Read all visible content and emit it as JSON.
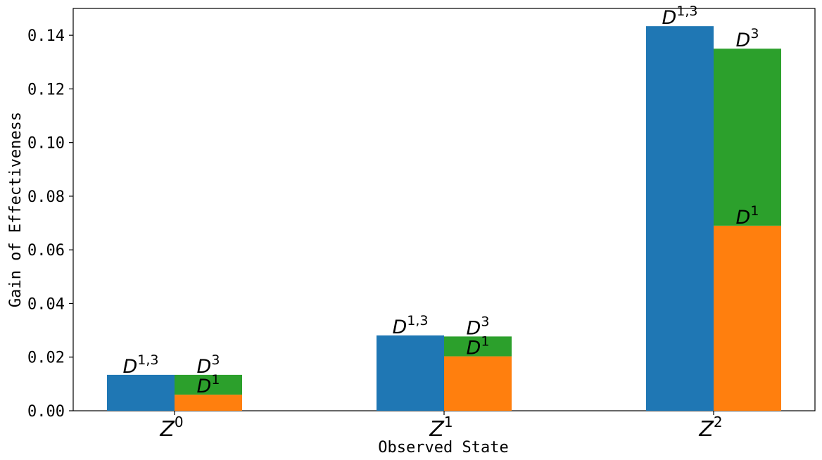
{
  "chart_data": {
    "type": "bar",
    "xlabel": "Observed State",
    "ylabel": "Gain of Effectiveness",
    "ylim": [
      0,
      0.15
    ],
    "yticks": [
      "0.00",
      "0.02",
      "0.04",
      "0.06",
      "0.08",
      "0.10",
      "0.12",
      "0.14"
    ],
    "ytick_values": [
      0,
      0.02,
      0.04,
      0.06,
      0.08,
      0.1,
      0.12,
      0.14
    ],
    "grid": false,
    "categories": [
      {
        "base": "Z",
        "sup": "0"
      },
      {
        "base": "Z",
        "sup": "1"
      },
      {
        "base": "Z",
        "sup": "2"
      }
    ],
    "series": [
      {
        "label_base": "D",
        "label_sup": "1,3",
        "color": "#1f77b4",
        "slot": "left",
        "values": [
          0.0134,
          0.0281,
          0.1434
        ]
      },
      {
        "label_base": "D",
        "label_sup": "1",
        "color": "#ff7f0e",
        "slot": "right",
        "values": [
          0.006,
          0.0203,
          0.069
        ]
      },
      {
        "label_base": "D",
        "label_sup": "3",
        "color": "#2ca02c",
        "slot": "right",
        "stack_on": "D1",
        "values": [
          0.0074,
          0.0074,
          0.066
        ]
      }
    ],
    "stack_totals_right": [
      0.0134,
      0.0277,
      0.135
    ]
  }
}
